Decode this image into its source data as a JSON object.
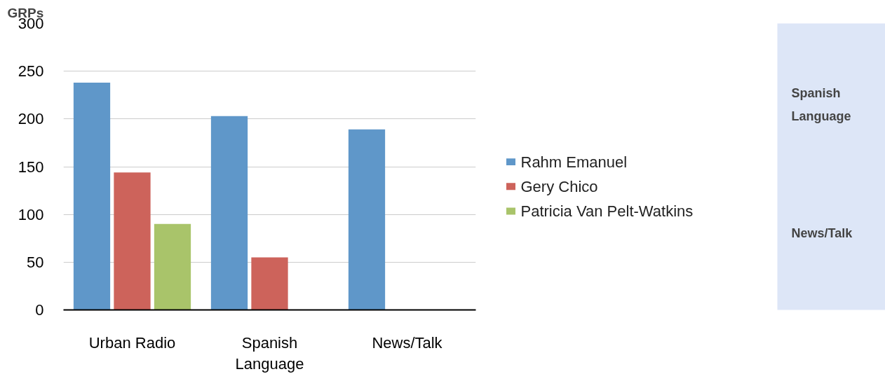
{
  "chart_data": {
    "type": "bar",
    "ylabel": "GRPs",
    "categories": [
      "Urban Radio",
      "Spanish Language",
      "News/Talk"
    ],
    "series": [
      {
        "name": "Rahm Emanuel",
        "color": "#5f97c9",
        "values": [
          238,
          203,
          189
        ]
      },
      {
        "name": "Gery Chico",
        "color": "#cd635b",
        "values": [
          144,
          55,
          null
        ]
      },
      {
        "name": "Patricia Van Pelt-Watkins",
        "color": "#a9c46a",
        "values": [
          90,
          null,
          null
        ]
      }
    ],
    "ylim": [
      0,
      300
    ],
    "yticks": [
      0,
      50,
      100,
      150,
      200,
      250,
      300
    ],
    "grid": "y",
    "legend": "right",
    "annotations": [
      "Spanish Language",
      "News/Talk"
    ]
  }
}
